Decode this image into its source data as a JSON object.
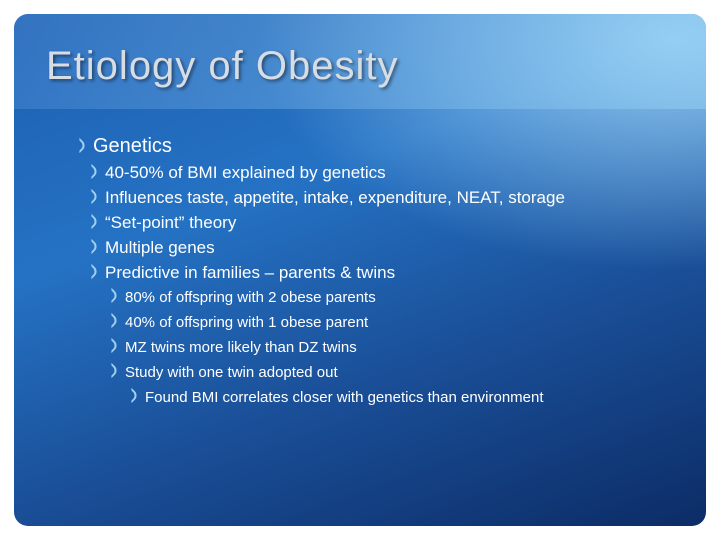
{
  "title": "Etiology of Obesity",
  "bullets": [
    {
      "text": "Genetics",
      "children": [
        {
          "text": "40-50% of BMI explained by genetics"
        },
        {
          "text": "Influences taste, appetite, intake, expenditure, NEAT, storage"
        },
        {
          "text": "“Set-point” theory"
        },
        {
          "text": "Multiple genes"
        },
        {
          "text": "Predictive in families – parents & twins",
          "children": [
            {
              "text": "80% of offspring with 2 obese parents"
            },
            {
              "text": "40% of offspring with 1 obese parent"
            },
            {
              "text": "MZ twins more likely than DZ twins"
            },
            {
              "text": "Study with one twin adopted out",
              "children": [
                {
                  "text": "Found BMI correlates closer with genetics than environment"
                }
              ]
            }
          ]
        }
      ]
    }
  ]
}
